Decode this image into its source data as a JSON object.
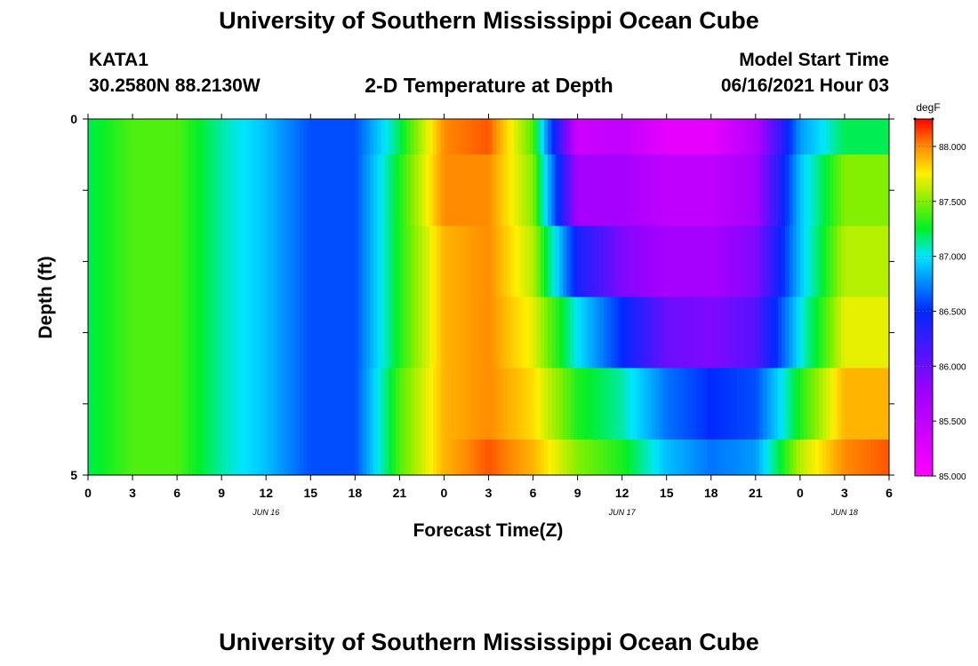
{
  "header": {
    "title": "University of Southern Mississippi Ocean Cube",
    "station_id": "KATA1",
    "coordinates": "30.2580N  88.2130W",
    "subtitle": "2-D Temperature at Depth",
    "model_start_label": "Model Start Time",
    "model_start_value": "06/16/2021 Hour 03"
  },
  "footer": {
    "title": "University of Southern Mississippi Ocean Cube"
  },
  "chart_data": {
    "type": "heatmap",
    "title": "2-D Temperature at Depth",
    "xlabel": "Forecast Time(Z)",
    "ylabel": "Depth (ft)",
    "x_tick_labels": [
      "0",
      "3",
      "6",
      "9",
      "12",
      "15",
      "18",
      "21",
      "0",
      "3",
      "6",
      "9",
      "12",
      "15",
      "18",
      "21",
      "0",
      "3",
      "6"
    ],
    "date_labels": [
      {
        "label": "JUN 16",
        "tick_index": 4
      },
      {
        "label": "JUN 17",
        "tick_index": 12
      },
      {
        "label": "JUN 18",
        "tick_index": 17
      }
    ],
    "y_tick_labels": [
      "0",
      "5"
    ],
    "ylim": [
      0,
      5
    ],
    "colorbar": {
      "unit": "degF",
      "min": 85.0,
      "max": 88.25,
      "tick_values": [
        85.0,
        85.5,
        86.0,
        86.5,
        87.0,
        87.5,
        88.0
      ],
      "tick_labels": [
        "85.000",
        "85.500",
        "86.000",
        "86.500",
        "87.000",
        "87.500",
        "88.000"
      ]
    },
    "x_hours_since_start": [
      0,
      3,
      6,
      9,
      12,
      15,
      18,
      21,
      24,
      27,
      30,
      33,
      36,
      39,
      42,
      45,
      48,
      51,
      54
    ],
    "depth_rows_ft": [
      "0-0.5",
      "0.5-1.5",
      "1.5-2.5",
      "2.5-3.5",
      "3.5-4.5",
      "4.5-5"
    ],
    "temperature_degF": [
      [
        87.2,
        87.4,
        87.4,
        87.1,
        86.9,
        86.6,
        86.6,
        87.2,
        88.0,
        88.1,
        87.4,
        85.4,
        85.5,
        85.2,
        85.2,
        85.6,
        86.8,
        87.2,
        87.2
      ],
      [
        87.2,
        87.4,
        87.4,
        87.1,
        86.9,
        86.6,
        86.6,
        87.3,
        88.0,
        88.0,
        87.5,
        85.7,
        85.7,
        85.5,
        85.5,
        85.7,
        86.9,
        87.5,
        87.5
      ],
      [
        87.2,
        87.4,
        87.4,
        87.1,
        86.9,
        86.6,
        86.6,
        87.3,
        87.9,
        88.0,
        87.6,
        86.4,
        85.9,
        85.7,
        85.7,
        85.9,
        86.9,
        87.6,
        87.6
      ],
      [
        87.2,
        87.4,
        87.4,
        87.1,
        86.9,
        86.6,
        86.6,
        87.3,
        87.9,
        88.0,
        87.7,
        87.0,
        86.5,
        86.0,
        85.9,
        86.1,
        87.0,
        87.7,
        87.7
      ],
      [
        87.2,
        87.4,
        87.4,
        87.1,
        86.9,
        86.6,
        86.6,
        87.4,
        87.9,
        88.0,
        87.8,
        87.3,
        87.1,
        86.7,
        86.5,
        86.6,
        87.3,
        87.9,
        87.9
      ],
      [
        87.2,
        87.4,
        87.4,
        87.1,
        86.9,
        86.6,
        86.6,
        87.4,
        87.9,
        88.1,
        87.9,
        87.5,
        87.3,
        86.9,
        86.7,
        86.8,
        87.6,
        88.0,
        88.1
      ]
    ]
  }
}
